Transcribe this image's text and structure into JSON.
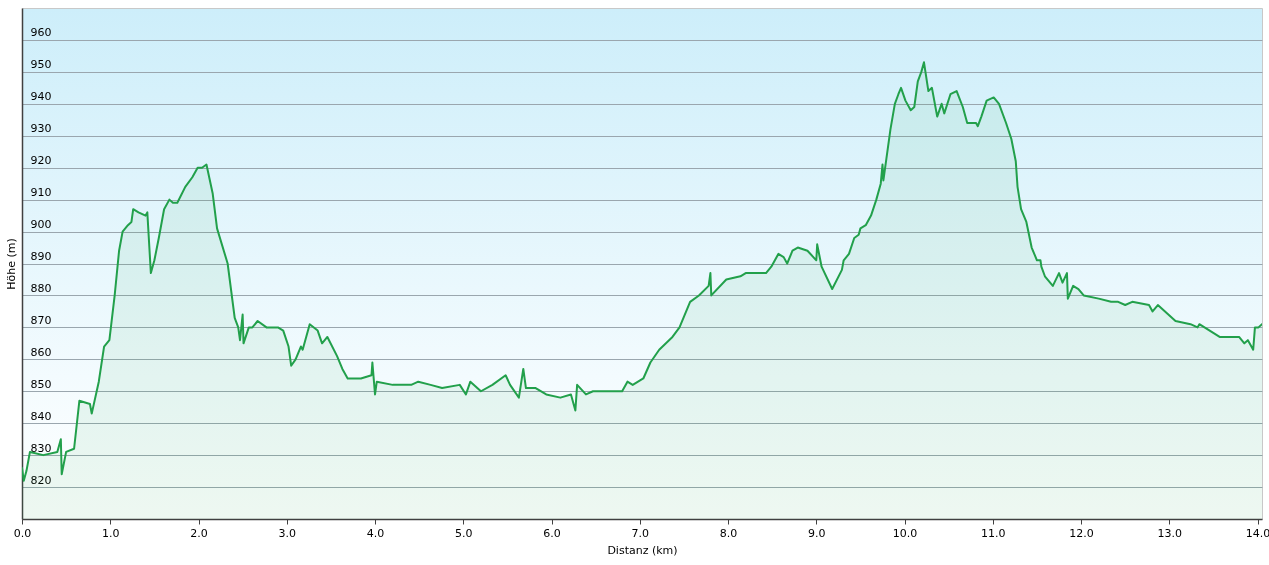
{
  "chart_data": {
    "type": "area",
    "xlabel": "Distanz (km)",
    "ylabel": "Höhe (m)",
    "x": [
      0.0,
      0.02,
      0.05,
      0.09,
      0.24,
      0.4,
      0.44,
      0.45,
      0.5,
      0.59,
      0.65,
      0.77,
      0.79,
      0.87,
      0.93,
      0.99,
      1.05,
      1.1,
      1.14,
      1.2,
      1.24,
      1.26,
      1.32,
      1.4,
      1.42,
      1.46,
      1.5,
      1.55,
      1.61,
      1.67,
      1.71,
      1.76,
      1.85,
      1.93,
      1.99,
      2.04,
      2.09,
      2.16,
      2.21,
      2.33,
      2.41,
      2.45,
      2.47,
      2.5,
      2.51,
      2.57,
      2.61,
      2.67,
      2.77,
      2.9,
      2.96,
      3.02,
      3.05,
      3.1,
      3.16,
      3.18,
      3.26,
      3.35,
      3.4,
      3.46,
      3.57,
      3.63,
      3.69,
      3.84,
      3.96,
      3.97,
      4.0,
      4.02,
      4.2,
      4.41,
      4.49,
      4.63,
      4.76,
      4.96,
      5.03,
      5.08,
      5.2,
      5.33,
      5.48,
      5.53,
      5.63,
      5.68,
      5.71,
      5.82,
      5.94,
      6.1,
      6.22,
      6.27,
      6.29,
      6.39,
      6.47,
      6.67,
      6.8,
      6.86,
      6.92,
      7.04,
      7.12,
      7.22,
      7.37,
      7.45,
      7.57,
      7.67,
      7.78,
      7.8,
      7.81,
      7.98,
      8.14,
      8.2,
      8.43,
      8.49,
      8.57,
      8.63,
      8.67,
      8.73,
      8.79,
      8.9,
      9.0,
      9.01,
      9.06,
      9.18,
      9.29,
      9.31,
      9.37,
      9.43,
      9.48,
      9.5,
      9.56,
      9.62,
      9.68,
      9.73,
      9.75,
      9.76,
      9.8,
      9.84,
      9.89,
      9.93,
      9.96,
      10.01,
      10.07,
      10.11,
      10.15,
      10.19,
      10.22,
      10.27,
      10.31,
      10.37,
      10.42,
      10.45,
      10.52,
      10.59,
      10.66,
      10.71,
      10.81,
      10.83,
      10.87,
      10.93,
      11.01,
      11.07,
      11.15,
      11.21,
      11.26,
      11.28,
      11.32,
      11.38,
      11.44,
      11.5,
      11.54,
      11.55,
      11.59,
      11.68,
      11.75,
      11.79,
      11.84,
      11.85,
      11.91,
      11.97,
      12.03,
      12.2,
      12.34,
      12.42,
      12.5,
      12.58,
      12.77,
      12.81,
      12.87,
      13.07,
      13.24,
      13.32,
      13.34,
      13.57,
      13.69,
      13.79,
      13.85,
      13.89,
      13.93,
      13.95,
      13.97,
      14.01,
      14.05
    ],
    "series": [
      {
        "color": "#22a04b",
        "values": [
          826,
          822,
          825,
          831,
          830,
          831,
          835,
          824,
          831,
          832,
          847,
          846,
          843,
          853,
          864,
          866,
          880,
          894,
          900,
          902,
          903,
          907,
          906,
          905,
          906,
          887,
          891,
          898,
          907,
          910,
          909,
          909,
          914,
          917,
          920,
          920,
          921,
          912,
          901,
          890,
          873,
          870,
          866,
          874,
          865,
          870,
          870,
          872,
          870,
          870,
          869,
          864,
          858,
          860,
          864,
          863,
          871,
          869,
          865,
          867,
          861,
          857,
          854,
          854,
          855,
          859,
          849,
          853,
          852,
          852,
          853,
          852,
          851,
          852,
          849,
          853,
          850,
          852,
          855,
          852,
          848,
          857,
          851,
          851,
          849,
          848,
          849,
          844,
          852,
          849,
          850,
          850,
          850,
          853,
          852,
          854,
          859,
          863,
          867,
          870,
          878,
          880,
          883,
          887,
          880,
          885,
          886,
          887,
          887,
          889,
          893,
          892,
          890,
          894,
          895,
          894,
          891,
          896,
          889,
          882,
          888,
          891,
          893,
          898,
          899,
          901,
          902,
          905,
          910,
          915,
          921,
          916,
          924,
          932,
          940,
          943,
          945,
          941,
          938,
          939,
          947,
          950,
          953,
          944,
          945,
          936,
          940,
          937,
          943,
          944,
          939,
          934,
          934,
          933,
          936,
          941,
          942,
          940,
          934,
          929,
          922,
          914,
          907,
          903,
          895,
          891,
          891,
          889,
          886,
          883,
          887,
          884,
          887,
          879,
          883,
          882,
          880,
          879,
          878,
          878,
          877,
          878,
          877,
          875,
          877,
          872,
          871,
          870,
          871,
          867,
          867,
          867,
          865,
          866,
          864,
          863,
          870,
          870,
          871
        ]
      }
    ],
    "xlim": [
      0,
      14.05
    ],
    "ylim": [
      810,
      970
    ],
    "xticks": [
      {
        "value": 0,
        "label": "0.0"
      },
      {
        "value": 1,
        "label": "1.0"
      },
      {
        "value": 2,
        "label": "2.0"
      },
      {
        "value": 3,
        "label": "3.0"
      },
      {
        "value": 4,
        "label": "4.0"
      },
      {
        "value": 5,
        "label": "5.0"
      },
      {
        "value": 6,
        "label": "6.0"
      },
      {
        "value": 7,
        "label": "7.0"
      },
      {
        "value": 8,
        "label": "8.0"
      },
      {
        "value": 9,
        "label": "9.0"
      },
      {
        "value": 10,
        "label": "10.0"
      },
      {
        "value": 11,
        "label": "11.0"
      },
      {
        "value": 12,
        "label": "12.0"
      },
      {
        "value": 13,
        "label": "13.0"
      },
      {
        "value": 14,
        "label": "14.0"
      }
    ],
    "yticks": [
      820,
      830,
      840,
      850,
      860,
      870,
      880,
      890,
      900,
      910,
      920,
      930,
      940,
      950,
      960
    ],
    "grid": "y"
  }
}
